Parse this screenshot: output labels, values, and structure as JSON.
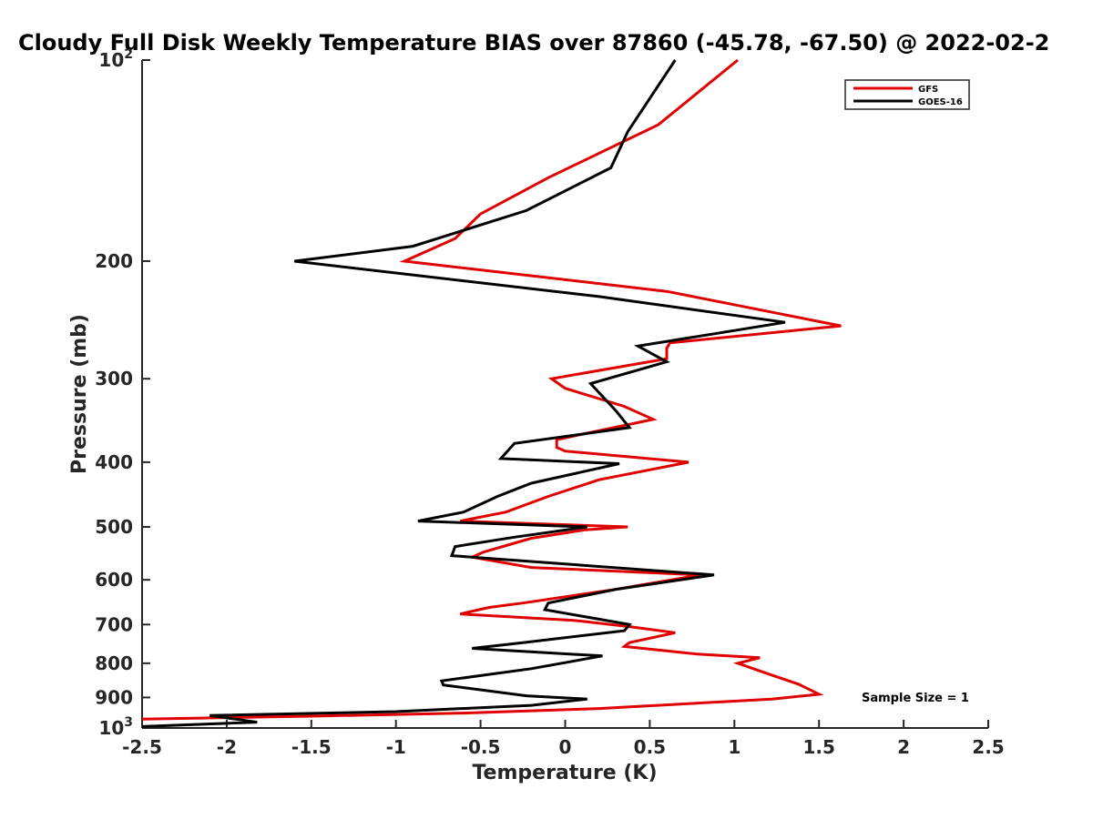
{
  "chart_data": {
    "type": "line",
    "title": "Cloudy Full Disk Weekly Temperature BIAS over 87860 (-45.78, -67.50) @ 2022-02-2",
    "xlabel": "Temperature (K)",
    "ylabel": "Pressure (mb)",
    "xlim": [
      -2.5,
      2.5
    ],
    "ylim": [
      100,
      1000
    ],
    "yscale": "log",
    "y_reversed": true,
    "grid": false,
    "legend_position": "top-right",
    "x_ticks": [
      "-2.5",
      "-2",
      "-1.5",
      "-1",
      "-0.5",
      "0",
      "0.5",
      "1",
      "1.5",
      "2",
      "2.5"
    ],
    "y_ticks": [
      {
        "value": 100,
        "base": "10",
        "exp": "2"
      },
      {
        "value": 200,
        "label": "200"
      },
      {
        "value": 300,
        "label": "300"
      },
      {
        "value": 400,
        "label": "400"
      },
      {
        "value": 500,
        "label": "500"
      },
      {
        "value": 600,
        "label": "600"
      },
      {
        "value": 700,
        "label": "700"
      },
      {
        "value": 800,
        "label": "800"
      },
      {
        "value": 900,
        "label": "900"
      },
      {
        "value": 1000,
        "base": "10",
        "exp": "3"
      }
    ],
    "annotation": "Sample Size = 1",
    "series": [
      {
        "name": "GFS",
        "color": "#e00000",
        "points": [
          [
            1.02,
            100
          ],
          [
            0.55,
            125
          ],
          [
            -0.1,
            150
          ],
          [
            -0.5,
            170
          ],
          [
            -0.65,
            185
          ],
          [
            -0.95,
            200
          ],
          [
            0.6,
            222
          ],
          [
            1.63,
            250
          ],
          [
            0.62,
            265
          ],
          [
            0.6,
            270
          ],
          [
            0.6,
            280
          ],
          [
            -0.08,
            300
          ],
          [
            0.0,
            310
          ],
          [
            0.35,
            330
          ],
          [
            0.52,
            345
          ],
          [
            -0.05,
            370
          ],
          [
            -0.05,
            380
          ],
          [
            0.0,
            385
          ],
          [
            0.73,
            400
          ],
          [
            0.2,
            425
          ],
          [
            -0.1,
            450
          ],
          [
            -0.35,
            475
          ],
          [
            -0.62,
            490
          ],
          [
            0.37,
            500
          ],
          [
            0.12,
            505
          ],
          [
            -0.2,
            520
          ],
          [
            -0.48,
            545
          ],
          [
            -0.55,
            555
          ],
          [
            -0.2,
            575
          ],
          [
            0.8,
            590
          ],
          [
            0.3,
            620
          ],
          [
            -0.25,
            650
          ],
          [
            -0.45,
            660
          ],
          [
            -0.62,
            675
          ],
          [
            0.05,
            690
          ],
          [
            0.38,
            705
          ],
          [
            0.65,
            720
          ],
          [
            0.38,
            745
          ],
          [
            0.35,
            755
          ],
          [
            0.78,
            775
          ],
          [
            1.15,
            785
          ],
          [
            1.02,
            800
          ],
          [
            1.2,
            830
          ],
          [
            1.38,
            860
          ],
          [
            1.5,
            890
          ],
          [
            1.22,
            905
          ],
          [
            0.2,
            935
          ],
          [
            -0.6,
            950
          ],
          [
            -1.5,
            960
          ],
          [
            -2.5,
            970
          ]
        ]
      },
      {
        "name": "GOES-16",
        "color": "#000000",
        "points": [
          [
            0.65,
            100
          ],
          [
            0.37,
            128
          ],
          [
            0.27,
            145
          ],
          [
            -0.23,
            168
          ],
          [
            -0.9,
            190
          ],
          [
            -1.6,
            200
          ],
          [
            0.2,
            226
          ],
          [
            1.3,
            247
          ],
          [
            0.43,
            268
          ],
          [
            0.6,
            283
          ],
          [
            0.15,
            305
          ],
          [
            0.3,
            335
          ],
          [
            0.38,
            355
          ],
          [
            -0.3,
            375
          ],
          [
            -0.38,
            395
          ],
          [
            0.32,
            402
          ],
          [
            -0.2,
            430
          ],
          [
            -0.4,
            450
          ],
          [
            -0.6,
            475
          ],
          [
            -0.87,
            490
          ],
          [
            0.13,
            500
          ],
          [
            -0.3,
            518
          ],
          [
            -0.65,
            535
          ],
          [
            -0.67,
            552
          ],
          [
            0.88,
            590
          ],
          [
            0.3,
            620
          ],
          [
            -0.1,
            650
          ],
          [
            -0.12,
            665
          ],
          [
            0.38,
            700
          ],
          [
            0.35,
            715
          ],
          [
            -0.25,
            745
          ],
          [
            -0.55,
            760
          ],
          [
            0.22,
            780
          ],
          [
            -0.2,
            815
          ],
          [
            -0.73,
            850
          ],
          [
            -0.72,
            862
          ],
          [
            -0.23,
            895
          ],
          [
            0.13,
            905
          ],
          [
            -0.2,
            925
          ],
          [
            -1.0,
            945
          ],
          [
            -2.1,
            958
          ],
          [
            -1.82,
            980
          ],
          [
            -2.5,
            995
          ]
        ]
      }
    ]
  }
}
